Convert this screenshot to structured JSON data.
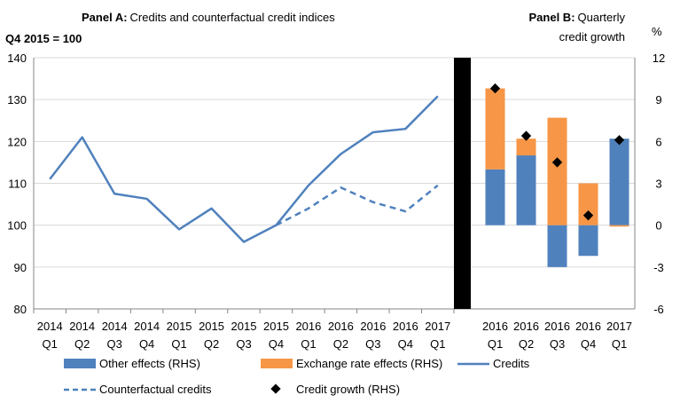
{
  "chart_data": [
    {
      "type": "line",
      "panel_label": "Panel A:",
      "title": "Credits and counterfactual credit indices",
      "ylabel": "Q4 2015 = 100",
      "ylim": [
        80,
        140
      ],
      "yticks": [
        80,
        90,
        100,
        110,
        120,
        130,
        140
      ],
      "grid": true,
      "categories": [
        {
          "year": "2014",
          "quarter": "Q1"
        },
        {
          "year": "2014",
          "quarter": "Q2"
        },
        {
          "year": "2014",
          "quarter": "Q3"
        },
        {
          "year": "2014",
          "quarter": "Q4"
        },
        {
          "year": "2015",
          "quarter": "Q1"
        },
        {
          "year": "2015",
          "quarter": "Q2"
        },
        {
          "year": "2015",
          "quarter": "Q3"
        },
        {
          "year": "2015",
          "quarter": "Q4"
        },
        {
          "year": "2016",
          "quarter": "Q1"
        },
        {
          "year": "2016",
          "quarter": "Q2"
        },
        {
          "year": "2016",
          "quarter": "Q3"
        },
        {
          "year": "2016",
          "quarter": "Q4"
        },
        {
          "year": "2017",
          "quarter": "Q1"
        }
      ],
      "series": [
        {
          "name": "Credits",
          "style": "solid",
          "values": [
            111,
            121,
            107.5,
            106.3,
            99,
            104,
            96,
            100,
            109.5,
            117,
            122.2,
            123,
            130.8
          ]
        },
        {
          "name": "Counterfactual credits",
          "style": "dashed",
          "values": [
            null,
            null,
            null,
            null,
            null,
            null,
            null,
            100,
            104,
            109,
            105.5,
            103.3,
            109.5
          ]
        }
      ]
    },
    {
      "type": "bar",
      "stacked": true,
      "panel_label": "Panel B:",
      "title_lines": [
        "Quarterly",
        "credit growth"
      ],
      "ylabel": "%",
      "ylim": [
        -6,
        12
      ],
      "yticks": [
        -6,
        -3,
        0,
        3,
        6,
        9,
        12
      ],
      "categories": [
        {
          "year": "2016",
          "quarter": "Q1"
        },
        {
          "year": "2016",
          "quarter": "Q2"
        },
        {
          "year": "2016",
          "quarter": "Q3"
        },
        {
          "year": "2016",
          "quarter": "Q4"
        },
        {
          "year": "2017",
          "quarter": "Q1"
        }
      ],
      "series": [
        {
          "name": "Other effects (RHS)",
          "values": [
            4.0,
            5.0,
            -3.0,
            -2.2,
            6.2
          ]
        },
        {
          "name": "Exchange rate effects (RHS)",
          "values": [
            5.8,
            1.2,
            7.7,
            3.0,
            -0.1
          ]
        }
      ],
      "markers": {
        "name": "Credit growth (RHS)",
        "values": [
          9.8,
          6.4,
          4.5,
          0.7,
          6.1
        ]
      }
    }
  ],
  "legend": {
    "other_effects": "Other effects (RHS)",
    "exchange_rate_effects": "Exchange rate effects (RHS)",
    "credits": "Credits",
    "counterfactual_credits": "Counterfactual credits",
    "credit_growth": "Credit growth (RHS)"
  },
  "colors": {
    "blue_bar": "#4f81bd",
    "orange_bar": "#f79646",
    "line": "#4f81bd",
    "gridline": "#d9d9d9",
    "axis": "#868686",
    "separator": "#000000"
  }
}
